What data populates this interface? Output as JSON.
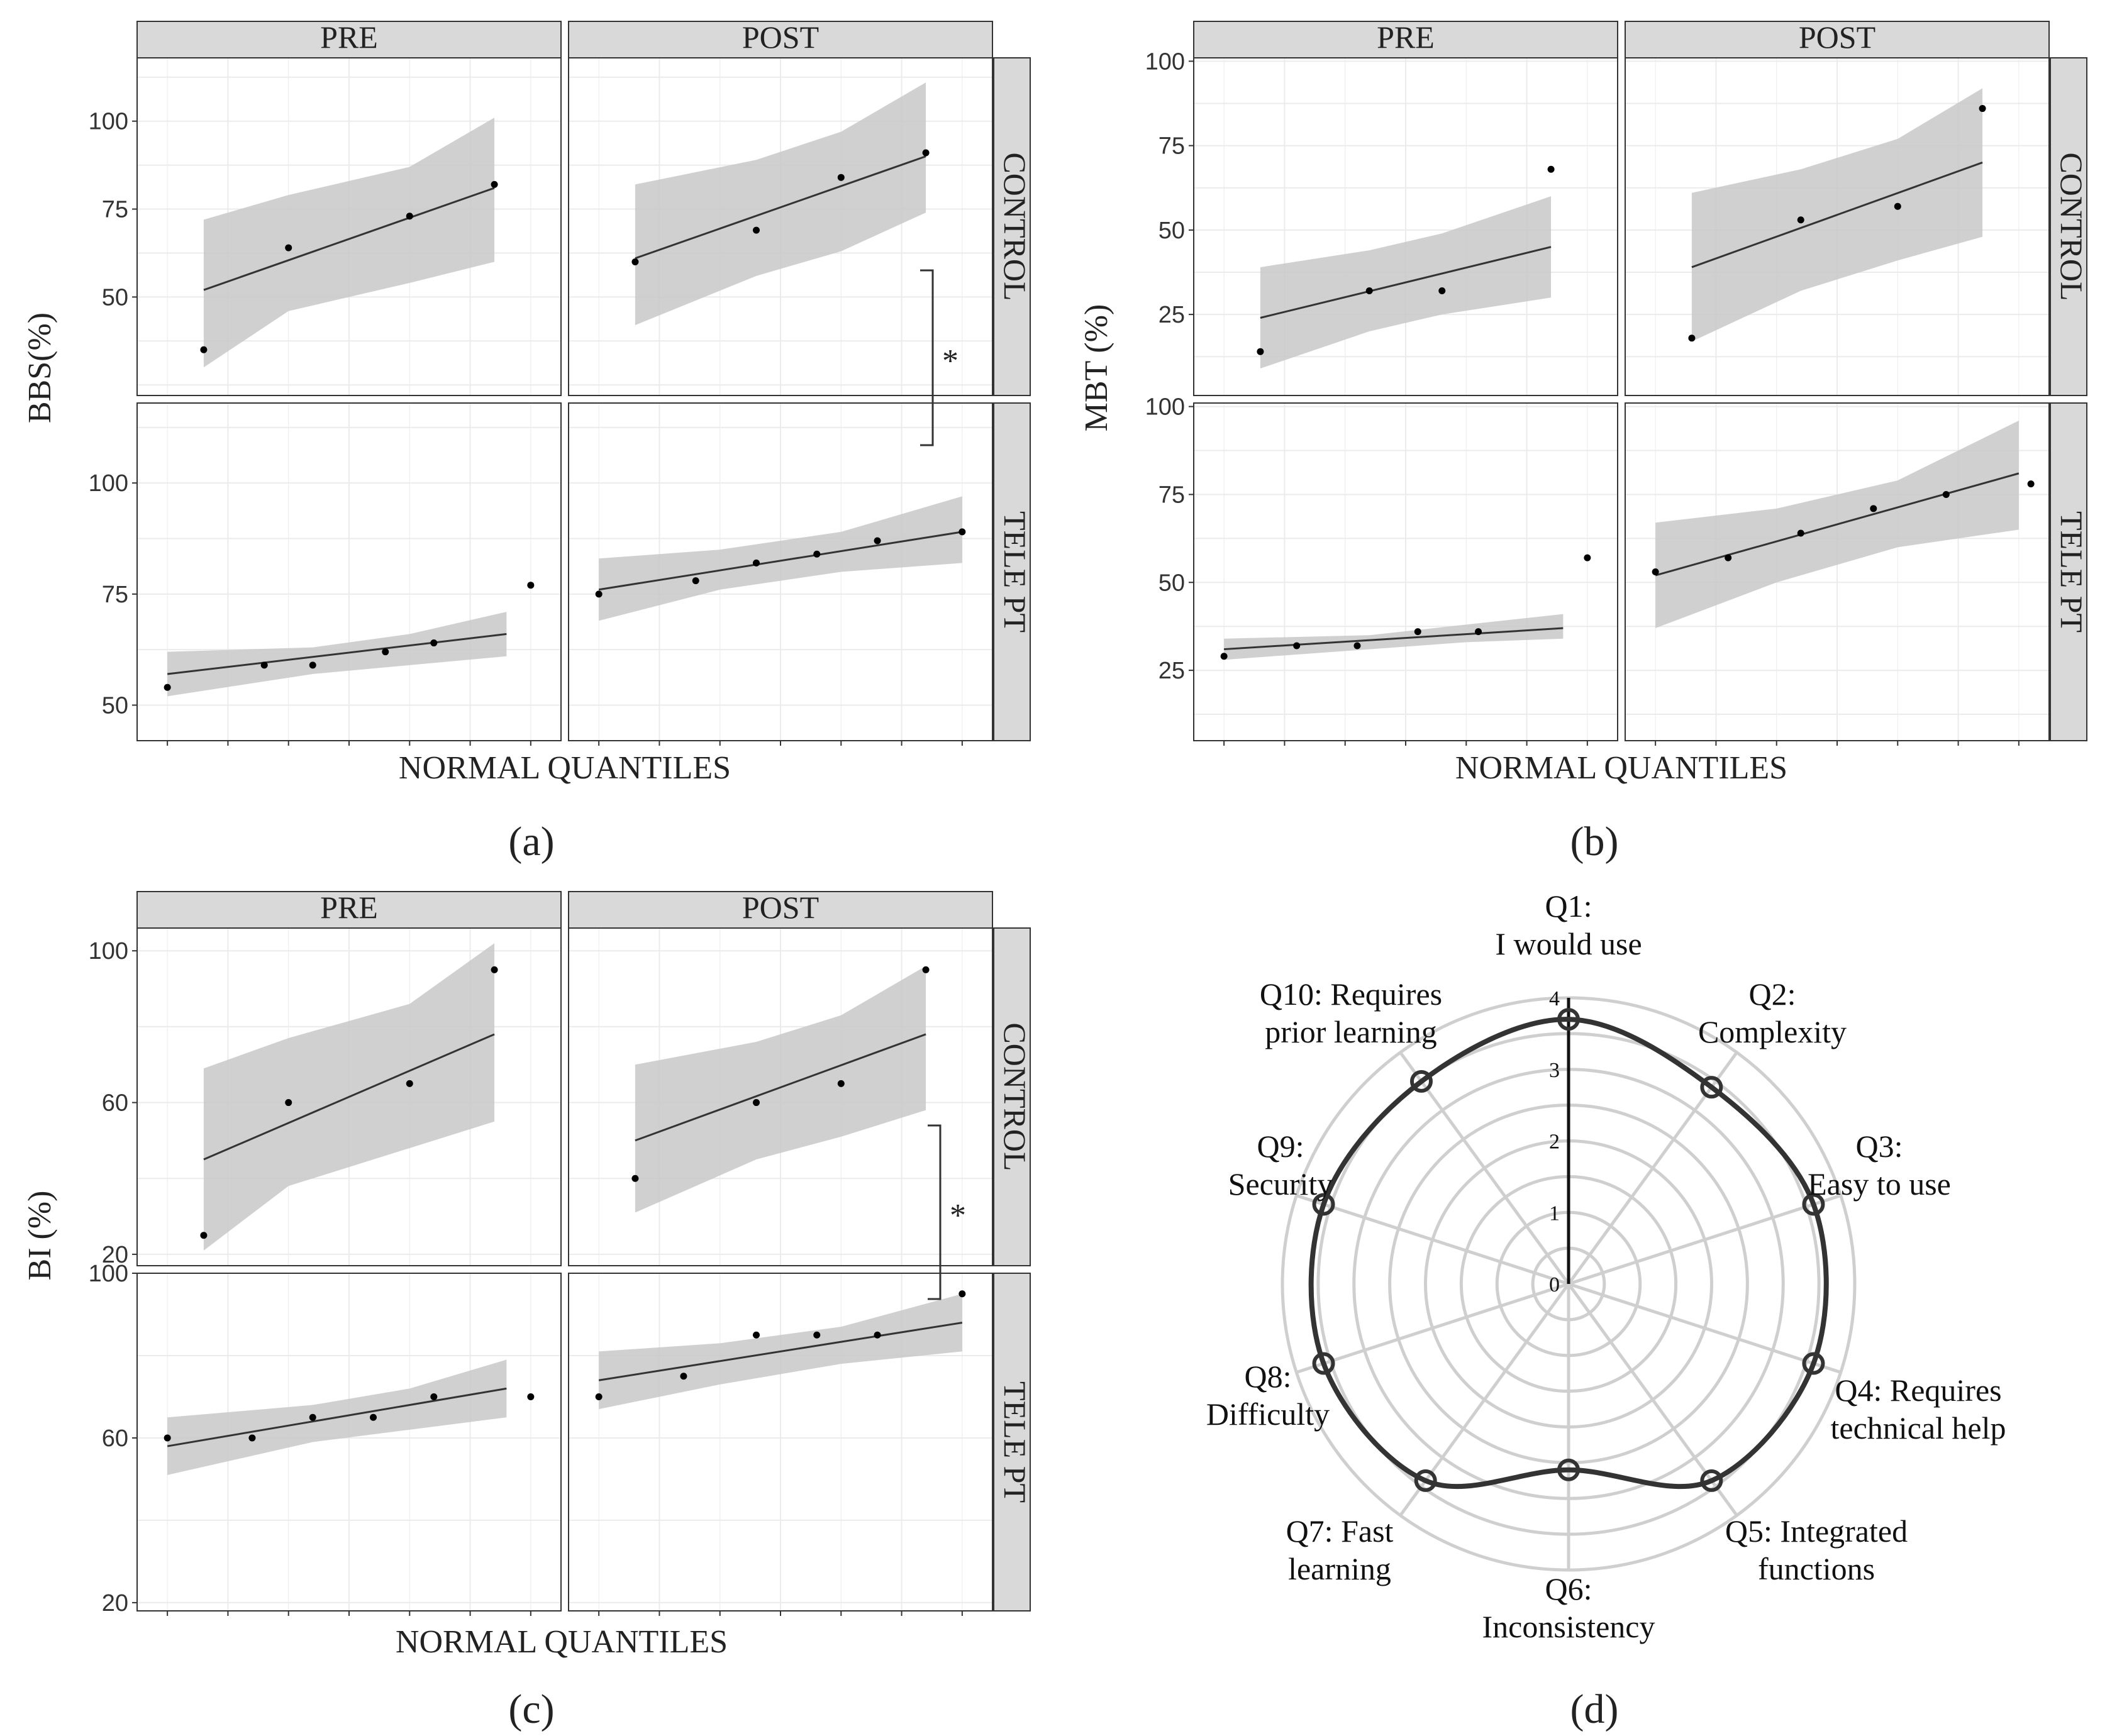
{
  "figure": {
    "panel_letters": [
      "(a)",
      "(b)",
      "(c)",
      "(d)"
    ],
    "colors": {
      "ribbon": "#c8c8c8",
      "strip_fill": "#d9d9d9",
      "grid": "#ebebeb",
      "line": "#333333",
      "point": "#000000",
      "radar_grid": "#cfcfcf",
      "radar_line": "#333333"
    }
  },
  "chart_data": [
    {
      "id": "a",
      "type": "scatter",
      "title": "",
      "xlabel": "NORMAL QUANTILES",
      "ylabel": "BBS(%)",
      "col_facets": [
        "PRE",
        "POST"
      ],
      "row_facets": [
        "CONTROL",
        "TELE PT"
      ],
      "row_ylim": [
        [
          22,
          118
        ],
        [
          42,
          118
        ]
      ],
      "row_yticks": [
        [
          50,
          75,
          100
        ],
        [
          50,
          75,
          100
        ]
      ],
      "significance": "*",
      "panels": [
        {
          "row": "CONTROL",
          "col": "PRE",
          "points": [
            [
              -1.2,
              35
            ],
            [
              -0.5,
              64
            ],
            [
              0.5,
              73
            ],
            [
              1.2,
              82
            ]
          ],
          "fit": [
            [
              -1.2,
              52
            ],
            [
              1.2,
              81
            ]
          ],
          "band_low": [
            [
              -1.2,
              30
            ],
            [
              -0.5,
              46
            ],
            [
              0.5,
              54
            ],
            [
              1.2,
              60
            ]
          ],
          "band_high": [
            [
              -1.2,
              72
            ],
            [
              -0.5,
              79
            ],
            [
              0.5,
              87
            ],
            [
              1.2,
              101
            ]
          ]
        },
        {
          "row": "CONTROL",
          "col": "POST",
          "points": [
            [
              -1.2,
              60
            ],
            [
              -0.2,
              69
            ],
            [
              0.5,
              84
            ],
            [
              1.2,
              91
            ]
          ],
          "fit": [
            [
              -1.2,
              61
            ],
            [
              1.2,
              90
            ]
          ],
          "band_low": [
            [
              -1.2,
              42
            ],
            [
              -0.2,
              56
            ],
            [
              0.5,
              63
            ],
            [
              1.2,
              74
            ]
          ],
          "band_high": [
            [
              -1.2,
              82
            ],
            [
              -0.2,
              89
            ],
            [
              0.5,
              97
            ],
            [
              1.2,
              111
            ]
          ]
        },
        {
          "row": "TELE PT",
          "col": "PRE",
          "points": [
            [
              -1.5,
              54
            ],
            [
              -0.7,
              59
            ],
            [
              -0.3,
              59
            ],
            [
              0.3,
              62
            ],
            [
              0.7,
              64
            ],
            [
              1.5,
              77
            ]
          ],
          "fit": [
            [
              -1.5,
              57
            ],
            [
              1.3,
              66
            ]
          ],
          "band_low": [
            [
              -1.5,
              52
            ],
            [
              -0.3,
              57
            ],
            [
              0.5,
              59
            ],
            [
              1.3,
              61
            ]
          ],
          "band_high": [
            [
              -1.5,
              62
            ],
            [
              -0.3,
              63
            ],
            [
              0.5,
              66
            ],
            [
              1.3,
              71
            ]
          ]
        },
        {
          "row": "TELE PT",
          "col": "POST",
          "points": [
            [
              -1.5,
              75
            ],
            [
              -0.7,
              78
            ],
            [
              -0.2,
              82
            ],
            [
              0.3,
              84
            ],
            [
              0.8,
              87
            ],
            [
              1.5,
              89
            ]
          ],
          "fit": [
            [
              -1.5,
              76
            ],
            [
              1.5,
              89
            ]
          ],
          "band_low": [
            [
              -1.5,
              69
            ],
            [
              -0.5,
              76
            ],
            [
              0.5,
              80
            ],
            [
              1.5,
              82
            ]
          ],
          "band_high": [
            [
              -1.5,
              83
            ],
            [
              -0.5,
              85
            ],
            [
              0.5,
              89
            ],
            [
              1.5,
              97
            ]
          ]
        }
      ]
    },
    {
      "id": "b",
      "type": "scatter",
      "title": "",
      "xlabel": "NORMAL QUANTILES",
      "ylabel": "MBT (%)",
      "col_facets": [
        "PRE",
        "POST"
      ],
      "row_facets": [
        "CONTROL",
        "TELE PT"
      ],
      "row_ylim": [
        [
          1,
          101
        ],
        [
          5,
          101
        ]
      ],
      "row_yticks": [
        [
          25,
          50,
          75,
          100
        ],
        [
          25,
          50,
          75,
          100
        ]
      ],
      "significance": "",
      "panels": [
        {
          "row": "CONTROL",
          "col": "PRE",
          "points": [
            [
              -1.2,
              14
            ],
            [
              -0.3,
              32
            ],
            [
              0.3,
              32
            ],
            [
              1.2,
              68
            ]
          ],
          "fit": [
            [
              -1.2,
              24
            ],
            [
              1.2,
              45
            ]
          ],
          "band_low": [
            [
              -1.2,
              9
            ],
            [
              -0.3,
              20
            ],
            [
              0.3,
              25
            ],
            [
              1.2,
              30
            ]
          ],
          "band_high": [
            [
              -1.2,
              39
            ],
            [
              -0.3,
              44
            ],
            [
              0.3,
              49
            ],
            [
              1.2,
              60
            ]
          ]
        },
        {
          "row": "CONTROL",
          "col": "POST",
          "points": [
            [
              -1.2,
              18
            ],
            [
              -0.3,
              53
            ],
            [
              0.5,
              57
            ],
            [
              1.2,
              86
            ]
          ],
          "fit": [
            [
              -1.2,
              39
            ],
            [
              1.2,
              70
            ]
          ],
          "band_low": [
            [
              -1.2,
              17
            ],
            [
              -0.3,
              32
            ],
            [
              0.5,
              41
            ],
            [
              1.2,
              48
            ]
          ],
          "band_high": [
            [
              -1.2,
              61
            ],
            [
              -0.3,
              68
            ],
            [
              0.5,
              77
            ],
            [
              1.2,
              92
            ]
          ]
        },
        {
          "row": "TELE PT",
          "col": "PRE",
          "points": [
            [
              -1.5,
              29
            ],
            [
              -0.9,
              32
            ],
            [
              -0.4,
              32
            ],
            [
              0.1,
              36
            ],
            [
              0.6,
              36
            ],
            [
              1.5,
              57
            ]
          ],
          "fit": [
            [
              -1.5,
              31
            ],
            [
              1.3,
              37
            ]
          ],
          "band_low": [
            [
              -1.5,
              28
            ],
            [
              -0.3,
              31
            ],
            [
              0.5,
              33
            ],
            [
              1.3,
              34
            ]
          ],
          "band_high": [
            [
              -1.5,
              34
            ],
            [
              -0.3,
              35
            ],
            [
              0.5,
              38
            ],
            [
              1.3,
              41
            ]
          ]
        },
        {
          "row": "TELE PT",
          "col": "POST",
          "points": [
            [
              -1.5,
              53
            ],
            [
              -0.9,
              57
            ],
            [
              -0.3,
              64
            ],
            [
              0.3,
              71
            ],
            [
              0.9,
              75
            ],
            [
              1.6,
              78
            ]
          ],
          "fit": [
            [
              -1.5,
              52
            ],
            [
              1.5,
              81
            ]
          ],
          "band_low": [
            [
              -1.5,
              37
            ],
            [
              -0.5,
              50
            ],
            [
              0.5,
              60
            ],
            [
              1.5,
              65
            ]
          ],
          "band_high": [
            [
              -1.5,
              67
            ],
            [
              -0.5,
              71
            ],
            [
              0.5,
              79
            ],
            [
              1.5,
              96
            ]
          ]
        }
      ]
    },
    {
      "id": "c",
      "type": "scatter",
      "title": "",
      "xlabel": "NORMAL QUANTILES",
      "ylabel": "BI (%)",
      "col_facets": [
        "PRE",
        "POST"
      ],
      "row_facets": [
        "CONTROL",
        "TELE PT"
      ],
      "row_ylim": [
        [
          17,
          106
        ],
        [
          18,
          100
        ]
      ],
      "row_yticks": [
        [
          20,
          60,
          100
        ],
        [
          20,
          60,
          100
        ]
      ],
      "significance": "*",
      "panels": [
        {
          "row": "CONTROL",
          "col": "PRE",
          "points": [
            [
              -1.2,
              25
            ],
            [
              -0.5,
              60
            ],
            [
              0.5,
              65
            ],
            [
              1.2,
              95
            ]
          ],
          "fit": [
            [
              -1.2,
              45
            ],
            [
              1.2,
              78
            ]
          ],
          "band_low": [
            [
              -1.2,
              21
            ],
            [
              -0.5,
              38
            ],
            [
              0.5,
              48
            ],
            [
              1.2,
              55
            ]
          ],
          "band_high": [
            [
              -1.2,
              69
            ],
            [
              -0.5,
              77
            ],
            [
              0.5,
              86
            ],
            [
              1.2,
              102
            ]
          ]
        },
        {
          "row": "CONTROL",
          "col": "POST",
          "points": [
            [
              -1.2,
              40
            ],
            [
              -0.2,
              60
            ],
            [
              0.5,
              65
            ],
            [
              1.2,
              95
            ]
          ],
          "fit": [
            [
              -1.2,
              50
            ],
            [
              1.2,
              78
            ]
          ],
          "band_low": [
            [
              -1.2,
              31
            ],
            [
              -0.2,
              45
            ],
            [
              0.5,
              51
            ],
            [
              1.2,
              58
            ]
          ],
          "band_high": [
            [
              -1.2,
              70
            ],
            [
              -0.2,
              76
            ],
            [
              0.5,
              83
            ],
            [
              1.2,
              96
            ]
          ]
        },
        {
          "row": "TELE PT",
          "col": "PRE",
          "points": [
            [
              -1.5,
              60
            ],
            [
              -0.8,
              60
            ],
            [
              -0.3,
              65
            ],
            [
              0.2,
              65
            ],
            [
              0.7,
              70
            ],
            [
              1.5,
              70
            ]
          ],
          "fit": [
            [
              -1.5,
              58
            ],
            [
              1.3,
              72
            ]
          ],
          "band_low": [
            [
              -1.5,
              51
            ],
            [
              -0.3,
              59
            ],
            [
              0.5,
              62
            ],
            [
              1.3,
              65
            ]
          ],
          "band_high": [
            [
              -1.5,
              65
            ],
            [
              -0.3,
              68
            ],
            [
              0.5,
              72
            ],
            [
              1.3,
              79
            ]
          ]
        },
        {
          "row": "TELE PT",
          "col": "POST",
          "points": [
            [
              -1.5,
              70
            ],
            [
              -0.8,
              75
            ],
            [
              -0.2,
              85
            ],
            [
              0.3,
              85
            ],
            [
              0.8,
              85
            ],
            [
              1.5,
              95
            ]
          ],
          "fit": [
            [
              -1.5,
              74
            ],
            [
              1.5,
              88
            ]
          ],
          "band_low": [
            [
              -1.5,
              67
            ],
            [
              -0.5,
              73
            ],
            [
              0.5,
              78
            ],
            [
              1.5,
              81
            ]
          ],
          "band_high": [
            [
              -1.5,
              81
            ],
            [
              -0.5,
              83
            ],
            [
              0.5,
              87
            ],
            [
              1.5,
              95
            ]
          ]
        }
      ]
    },
    {
      "id": "d",
      "type": "radar",
      "title": "",
      "axes": [
        "Q1: I would use",
        "Q2: Complexity",
        "Q3: Easy to use",
        "Q4: Requires technical help",
        "Q5: Integrated functions",
        "Q6: Inconsistency",
        "Q7: Fast learning",
        "Q8: Difficulty",
        "Q9: Security",
        "Q10: Requires prior learning"
      ],
      "axis_label_lines": [
        [
          "Q1:",
          "I would use"
        ],
        [
          "Q2:",
          "Complexity"
        ],
        [
          "Q3:",
          "Easy to use"
        ],
        [
          "Q4: Requires",
          "technical help"
        ],
        [
          "Q5: Integrated",
          "functions"
        ],
        [
          "Q6:",
          "Inconsistency"
        ],
        [
          "Q7: Fast",
          "learning"
        ],
        [
          "Q8:",
          "Difficulty"
        ],
        [
          "Q9:",
          "Security"
        ],
        [
          "Q10: Requires",
          "prior learning"
        ]
      ],
      "values": [
        3.7,
        3.4,
        3.6,
        3.6,
        3.4,
        2.6,
        3.4,
        3.6,
        3.6,
        3.5
      ],
      "rlim": [
        0,
        4
      ],
      "r_ticks": [
        "0",
        "1",
        "2",
        "3",
        "4"
      ]
    }
  ]
}
